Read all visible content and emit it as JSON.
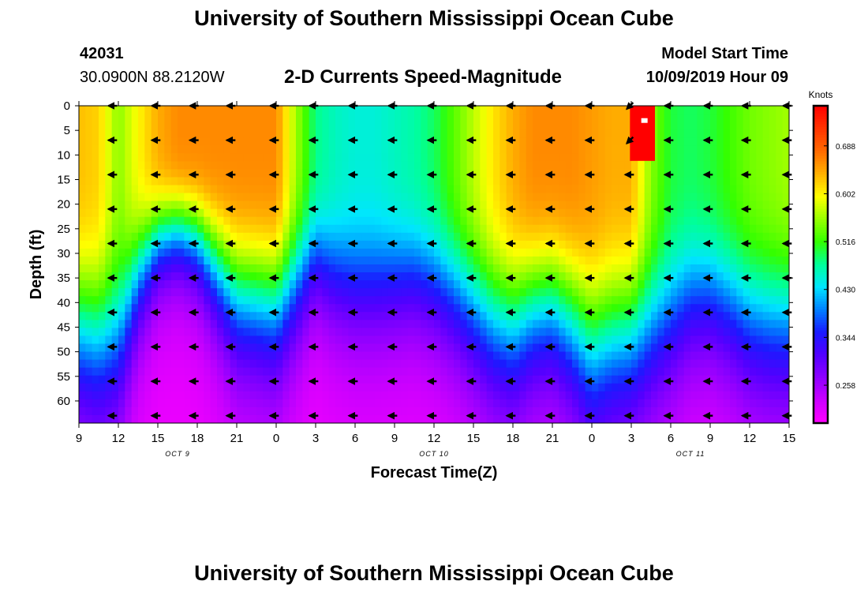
{
  "header": {
    "title": "University of Southern Mississippi Ocean Cube",
    "station_id": "42031",
    "coords": "30.0900N 88.2120W",
    "plot_title": "2-D Currents Speed-Magnitude",
    "model_label": "Model Start Time",
    "model_time": "10/09/2019 Hour 09"
  },
  "footer": {
    "title": "University of Southern Mississippi Ocean Cube"
  },
  "colors": {
    "scale": [
      "#ff00ff",
      "#cc00ff",
      "#8f00ff",
      "#5200ff",
      "#1a1aff",
      "#0080ff",
      "#00e6ff",
      "#00ff99",
      "#33ff00",
      "#99ff00",
      "#ffff00",
      "#ffb000",
      "#ff6a00",
      "#ff3300",
      "#ff0000"
    ],
    "arrow": "#000000",
    "marker": "#ffffff"
  },
  "chart_data": {
    "type": "heatmap",
    "title": "2-D Currents Speed-Magnitude",
    "xlabel": "Forecast Time(Z)",
    "ylabel": "Depth (ft)",
    "colorbar_label": "Knots",
    "colorbar_ticks": [
      0.688,
      0.602,
      0.516,
      0.43,
      0.344,
      0.258
    ],
    "zlim": [
      0.19,
      0.76
    ],
    "ylim": [
      0,
      64.5
    ],
    "xlim": [
      0,
      54
    ],
    "y_ticks": [
      0,
      5,
      10,
      15,
      20,
      25,
      30,
      35,
      40,
      45,
      50,
      55,
      60
    ],
    "x_ticks": [
      {
        "hour": 0,
        "label": "9"
      },
      {
        "hour": 3,
        "label": "12"
      },
      {
        "hour": 6,
        "label": "15"
      },
      {
        "hour": 9,
        "label": "18"
      },
      {
        "hour": 12,
        "label": "21"
      },
      {
        "hour": 15,
        "label": "0"
      },
      {
        "hour": 18,
        "label": "3"
      },
      {
        "hour": 21,
        "label": "6"
      },
      {
        "hour": 24,
        "label": "9"
      },
      {
        "hour": 27,
        "label": "12"
      },
      {
        "hour": 30,
        "label": "15"
      },
      {
        "hour": 33,
        "label": "18"
      },
      {
        "hour": 36,
        "label": "21"
      },
      {
        "hour": 39,
        "label": "0"
      },
      {
        "hour": 42,
        "label": "3"
      },
      {
        "hour": 45,
        "label": "6"
      },
      {
        "hour": 48,
        "label": "9"
      },
      {
        "hour": 51,
        "label": "12"
      },
      {
        "hour": 54,
        "label": "15"
      }
    ],
    "date_labels": [
      {
        "hour": 7.5,
        "label": "OCT 9"
      },
      {
        "hour": 27,
        "label": "OCT 10"
      },
      {
        "hour": 46.5,
        "label": "OCT 11"
      }
    ],
    "speed_profile": {
      "hours": [
        0,
        1.5,
        3,
        4.5,
        6,
        7.5,
        9,
        10.5,
        12,
        13.5,
        15,
        16.5,
        18,
        19.5,
        21,
        22.5,
        24,
        25.5,
        27,
        28.5,
        30,
        31.5,
        33,
        34.5,
        36,
        37.5,
        39,
        40.5,
        42,
        43.5,
        45,
        46.5,
        48,
        49.5,
        51,
        52.5,
        54
      ],
      "surface_knots": [
        0.63,
        0.62,
        0.55,
        0.6,
        0.64,
        0.66,
        0.66,
        0.66,
        0.66,
        0.66,
        0.66,
        0.56,
        0.48,
        0.46,
        0.45,
        0.45,
        0.46,
        0.47,
        0.49,
        0.53,
        0.57,
        0.61,
        0.64,
        0.66,
        0.66,
        0.66,
        0.65,
        0.64,
        0.64,
        0.55,
        0.5,
        0.49,
        0.5,
        0.52,
        0.54,
        0.55,
        0.56
      ],
      "decay_depth_ft": [
        48,
        50,
        50,
        36,
        28,
        26,
        28,
        34,
        40,
        41,
        42,
        38,
        33,
        37,
        39,
        39,
        38,
        37,
        38,
        40,
        43,
        46,
        47,
        43,
        42,
        46,
        52,
        50,
        49,
        48,
        46,
        42,
        41,
        43,
        46,
        47,
        47
      ]
    },
    "hotspot": {
      "hour_start": 41.9,
      "hour_end": 43.8,
      "depth_start": 0,
      "depth_end": 11.2,
      "knots": 0.76
    },
    "arrow_hours": [
      2.6,
      5.9,
      8.8,
      11.6,
      14.9,
      17.9,
      20.9,
      23.9,
      26.9,
      29.9,
      32.9,
      35.9,
      38.9,
      41.9,
      44.9,
      47.9,
      50.8,
      53.9
    ],
    "arrow_depths_ft": [
      0,
      7,
      14,
      21,
      28,
      35,
      42,
      49,
      56,
      63
    ],
    "arrows": {
      "direction": "west",
      "exceptions": [
        {
          "hour": 41.9,
          "depth": 0,
          "direction": "southwest"
        },
        {
          "hour": 41.9,
          "depth": 7,
          "direction": "southwest"
        }
      ]
    },
    "marker": {
      "hour": 43.0,
      "depth": 3
    }
  }
}
